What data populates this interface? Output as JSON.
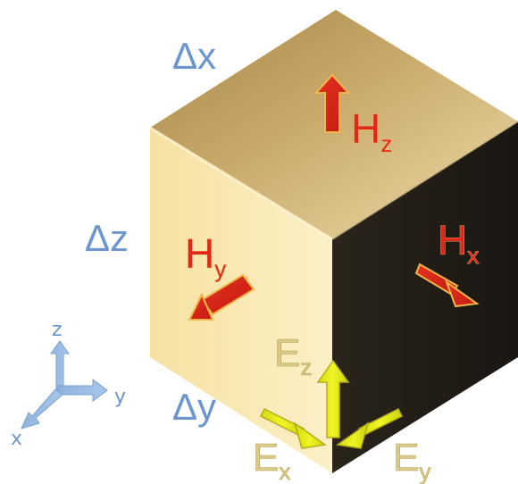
{
  "labels": {
    "dx": "Δx",
    "dy": "Δy",
    "dz": "Δz"
  },
  "fields": {
    "hz": {
      "base": "H",
      "sub": "z"
    },
    "hy": {
      "base": "H",
      "sub": "y"
    },
    "hx": {
      "base": "H",
      "sub": "x"
    },
    "ez": {
      "base": "E",
      "sub": "z"
    },
    "ex": {
      "base": "E",
      "sub": "x"
    },
    "ey": {
      "base": "E",
      "sub": "y"
    }
  },
  "axes": {
    "x": "x",
    "y": "y",
    "z": "z"
  },
  "colors": {
    "h_field": "#e0271a",
    "e_field": "#e9f20f",
    "dimension_text": "#6b95cf",
    "cube_top": "#c8a968",
    "cube_left": "#f7e6a6",
    "cube_right": "#1f1a14"
  }
}
